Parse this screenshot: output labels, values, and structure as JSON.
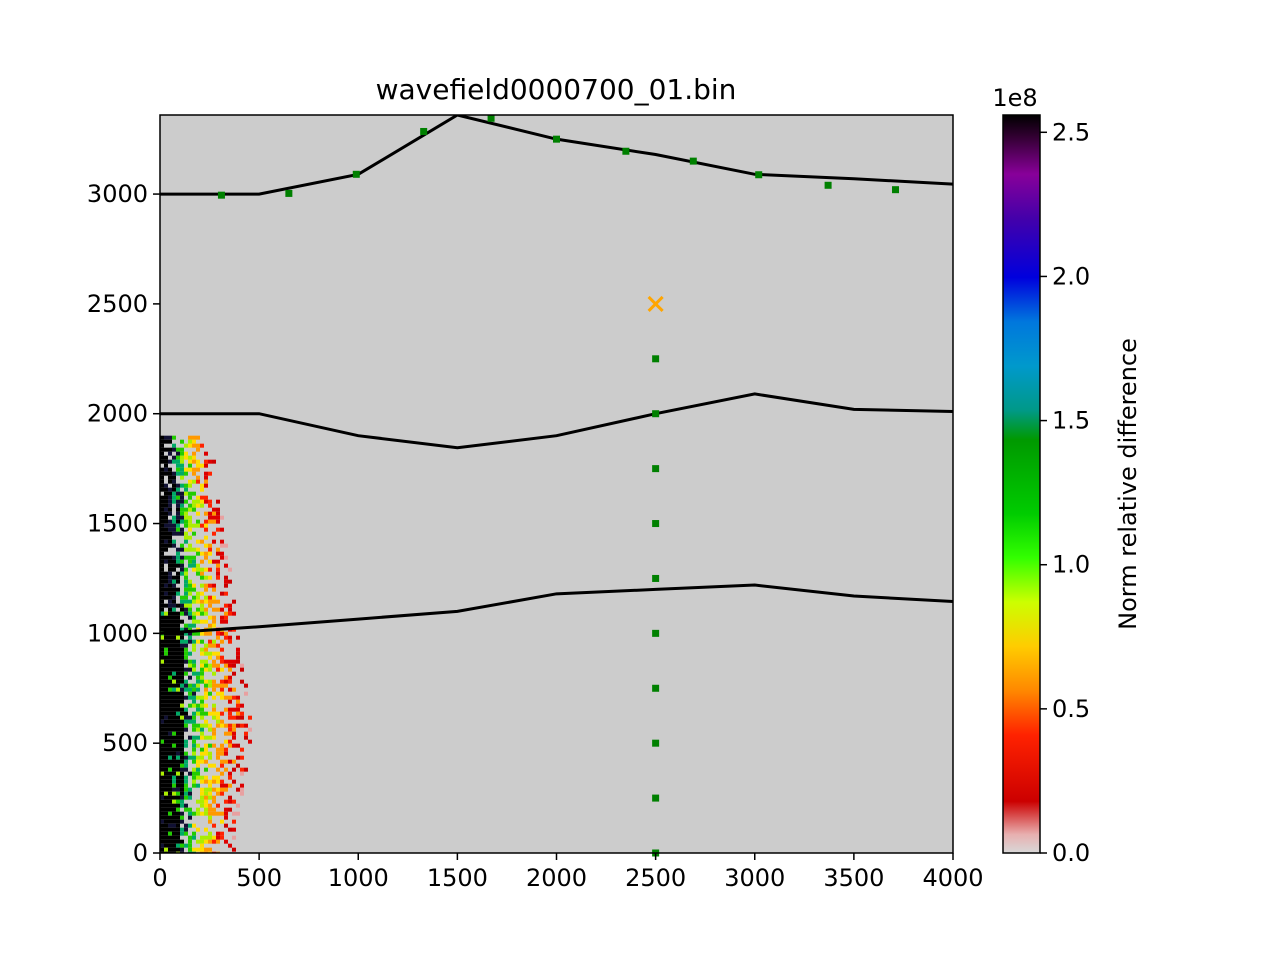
{
  "chart_data": {
    "type": "heatmap",
    "title": "wavefield0000700_01.bin",
    "xlabel": "",
    "ylabel": "",
    "xlim": [
      0,
      4000
    ],
    "ylim": [
      0,
      3360
    ],
    "x_ticks": [
      "0",
      "500",
      "1000",
      "1500",
      "2000",
      "2500",
      "3000",
      "3500",
      "4000"
    ],
    "y_ticks": [
      "0",
      "500",
      "1000",
      "1500",
      "2000",
      "2500",
      "3000"
    ],
    "background_color": "#cccccc",
    "grid": false,
    "colorbar": {
      "label": "Norm relative difference",
      "offset_text": "1e8",
      "range": [
        0,
        2.56
      ],
      "ticks": [
        "0.0",
        "0.5",
        "1.0",
        "1.5",
        "2.0",
        "2.5"
      ],
      "colormap": "nipy_spectral-like with light grey at zero"
    },
    "wavefield_anomaly": {
      "description_x_extent": [
        0,
        460
      ],
      "core_x_extent": [
        0,
        120
      ],
      "y_extent": [
        0,
        1900
      ],
      "peak_y": 600
    },
    "interfaces": [
      {
        "x": [
          0,
          500,
          1000,
          1500,
          2000,
          2500,
          3000,
          3500,
          4000
        ],
        "y": [
          3000,
          3000,
          3090,
          3360,
          3250,
          3180,
          3090,
          3070,
          3045
        ]
      },
      {
        "x": [
          0,
          500,
          1000,
          1500,
          2000,
          2500,
          3000,
          3500,
          4000
        ],
        "y": [
          2000,
          2000,
          1900,
          1845,
          1900,
          2000,
          2090,
          2020,
          2010
        ]
      },
      {
        "x": [
          0,
          500,
          1000,
          1500,
          2000,
          2500,
          3000,
          3500,
          4000
        ],
        "y": [
          1000,
          1030,
          1065,
          1100,
          1180,
          1200,
          1220,
          1170,
          1145
        ]
      }
    ],
    "receivers_surface": {
      "x": [
        310,
        650,
        990,
        1330,
        1670,
        2000,
        2350,
        2690,
        3020,
        3370,
        3710
      ],
      "y": [
        2995,
        3003,
        3090,
        3285,
        3345,
        3250,
        3195,
        3150,
        3088,
        3040,
        3020
      ],
      "color": "#008000"
    },
    "receivers_borehole": {
      "x": [
        2500,
        2500,
        2500,
        2500,
        2500,
        2500,
        2500,
        2500,
        2500,
        2500
      ],
      "y": [
        0,
        250,
        500,
        750,
        1000,
        1250,
        1500,
        1750,
        2000,
        2250
      ],
      "color": "#008000"
    },
    "source": {
      "x": 2500,
      "y": 2500,
      "marker": "x",
      "color": "#ffa500"
    }
  }
}
